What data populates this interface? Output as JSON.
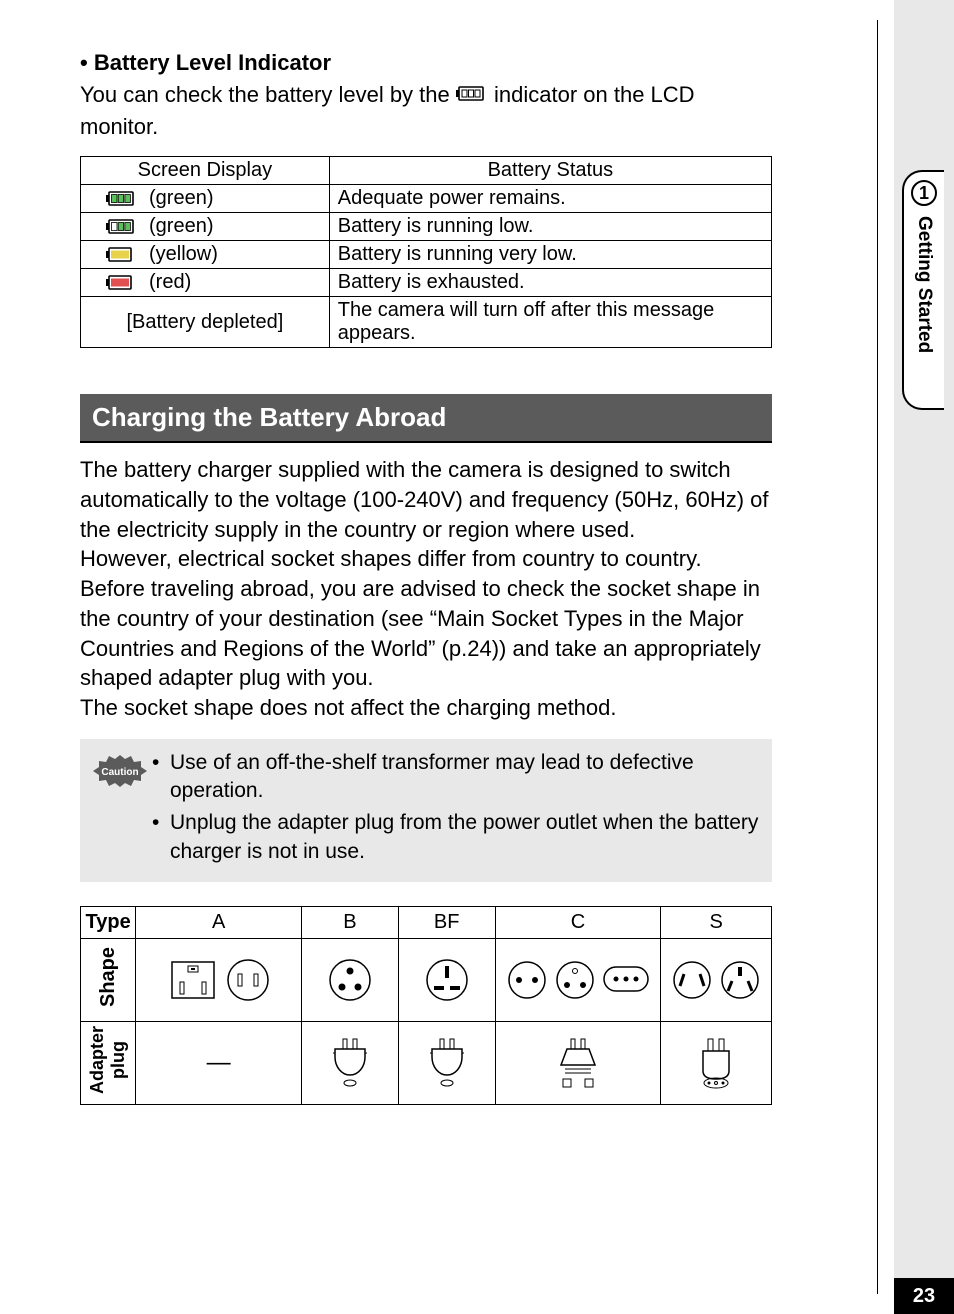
{
  "sidebar": {
    "chapter_number": "1",
    "chapter_title": "Getting Started"
  },
  "page_number": "23",
  "ind": {
    "heading": "Battery Level Indicator",
    "intro_before": "You can check the battery level by the ",
    "intro_after": " indicator on the LCD monitor.",
    "col_display": "Screen Display",
    "col_status": "Battery Status",
    "rows": [
      {
        "label": "(green)",
        "bars": 3,
        "color": "#5bbf5b",
        "status": "Adequate power remains."
      },
      {
        "label": "(green)",
        "bars": 2,
        "color": "#5bbf5b",
        "status": "Battery is running low."
      },
      {
        "label": "(yellow)",
        "bars": 1,
        "color": "#e8d24a",
        "status": "Battery is running very low."
      },
      {
        "label": "(red)",
        "bars": 1,
        "color": "#e05050",
        "status": "Battery is exhausted."
      }
    ],
    "depleted_label": "[Battery depleted]",
    "depleted_status": "The camera will turn off after this message appears."
  },
  "abroad": {
    "title": "Charging the Battery Abroad",
    "body": "The battery charger supplied with the camera is designed to switch automatically to the voltage (100-240V) and frequency (50Hz, 60Hz) of the electricity supply in the country or region where used.\nHowever, electrical socket shapes differ from country to country. Before traveling abroad, you are advised to check the socket shape in the country of your destination (see “Main Socket Types in the Major Countries and Regions of the World” (p.24)) and take an appropriately shaped adapter plug with you.\nThe socket shape does not affect the charging method."
  },
  "caution": {
    "label": "Caution",
    "items": [
      "Use of an off-the-shelf transformer may lead to defective operation.",
      "Unplug the adapter plug from the power outlet when the battery charger is not in use."
    ]
  },
  "plug_table": {
    "row_type": "Type",
    "row_shape": "Shape",
    "row_adapter": "Adapter plug",
    "types": [
      "A",
      "B",
      "BF",
      "C",
      "S"
    ],
    "col_widths_pct": [
      8,
      24,
      14,
      14,
      24,
      16
    ],
    "adapter_a_dash": "—"
  },
  "colors": {
    "gutter": "#e8e8e8",
    "section_bar": "#5b5b5b",
    "caution_bg": "#e8e8e8"
  }
}
